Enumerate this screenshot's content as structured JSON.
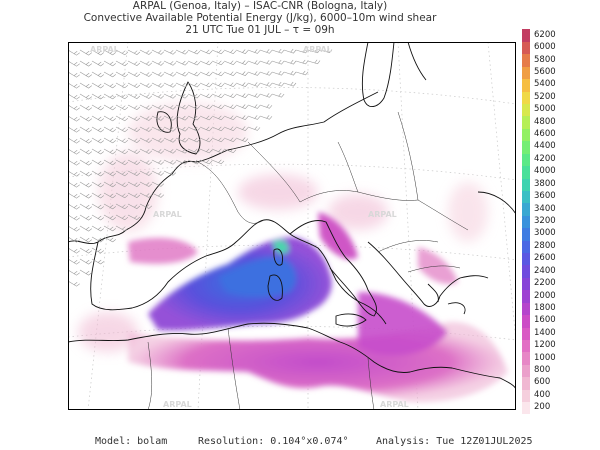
{
  "header": {
    "line1": "ARPAL (Genoa, Italy)  –  ISAC-CNR (Bologna, Italy)",
    "line2": "Convective Available Potential Energy (J/kg), 6000–10m wind shear",
    "line3": "21 UTC Tue 01 JUL  –  τ = 09h"
  },
  "watermark": "ARPAL",
  "colorbar": {
    "levels": [
      "200",
      "400",
      "600",
      "800",
      "1000",
      "1200",
      "1400",
      "1600",
      "1800",
      "2000",
      "2200",
      "2400",
      "2600",
      "2800",
      "3000",
      "3200",
      "3400",
      "3600",
      "3800",
      "4000",
      "4200",
      "4400",
      "4600",
      "4800",
      "5000",
      "5200",
      "5400",
      "5600",
      "5800",
      "6000",
      "6200"
    ],
    "colors": [
      "#fbe6ec",
      "#f5cfdd",
      "#f0b8d2",
      "#eba0cb",
      "#e787c6",
      "#e26fc4",
      "#d95ac4",
      "#cc4cc6",
      "#b545cc",
      "#9e42d2",
      "#8744d8",
      "#6f4bde",
      "#5a57e2",
      "#4a68e4",
      "#3f7ce2",
      "#3a92dc",
      "#3aa8d2",
      "#3bbfc4",
      "#3fd3b0",
      "#4ae09a",
      "#5ce987",
      "#75ee74",
      "#93f064",
      "#b6ef57",
      "#d8e84d",
      "#f0d947",
      "#f6be43",
      "#f09e44",
      "#e67c4a",
      "#d65a55",
      "#c23d62"
    ]
  },
  "footer": {
    "model": "Model: bolam",
    "resolution": "Resolution: 0.104°x0.074°",
    "analysis": "Analysis: Tue 12Z01JUL2025"
  }
}
